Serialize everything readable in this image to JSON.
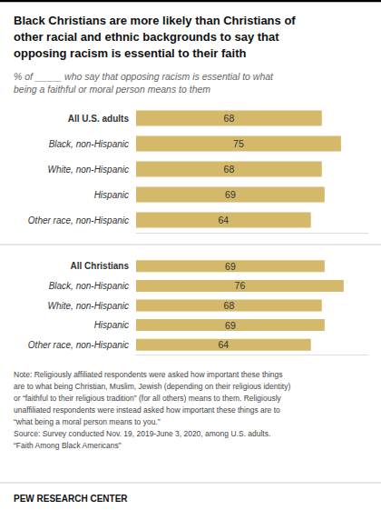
{
  "chart_data": [
    {
      "type": "bar",
      "orientation": "horizontal",
      "title": "Black Christians are more likely than Christians of\nother racial and ethnic backgrounds to say that\nopposing racism is essential to their faith",
      "subtitle": "% of _____ who say that opposing racism is essential to what\nbeing a faithful or moral person means to them",
      "categories": [
        "All U.S. adults",
        "Black, non-Hispanic",
        "White, non-Hispanic",
        "Hispanic",
        "Other race, non-Hispanic"
      ],
      "values": [
        68,
        75,
        68,
        69,
        64
      ],
      "color": "#D4B96A",
      "xlim": [
        0,
        85
      ],
      "data_labels": true,
      "tick_labels": "y",
      "grid": false
    },
    {
      "type": "bar",
      "orientation": "horizontal",
      "categories": [
        "All Christians",
        "Black, non-Hispanic",
        "White, non-Hispanic",
        "Hispanic",
        "Other race, non-Hispanic"
      ],
      "values": [
        69,
        76,
        68,
        69,
        64
      ],
      "color": "#D4B96A",
      "xlim": [
        0,
        85
      ],
      "data_labels": true,
      "tick_labels": "y",
      "grid": false,
      "notes": [
        "Note: Religiously affiliated respondents were asked how important these things",
        "are to what being Christian, Muslim, Jewish (depending on their religious identity)",
        "or “faithful to their religious tradition” (for all others) means to them. Religiously",
        "unaffiliated respondents were instead asked how important these things are to",
        "“what being a moral person means to you.”",
        "Source: Survey conducted Nov. 19, 2019-June 3, 2020, among U.S. adults.",
        "“Faith Among Black Americans”"
      ],
      "footer": "PEW RESEARCH CENTER"
    }
  ]
}
